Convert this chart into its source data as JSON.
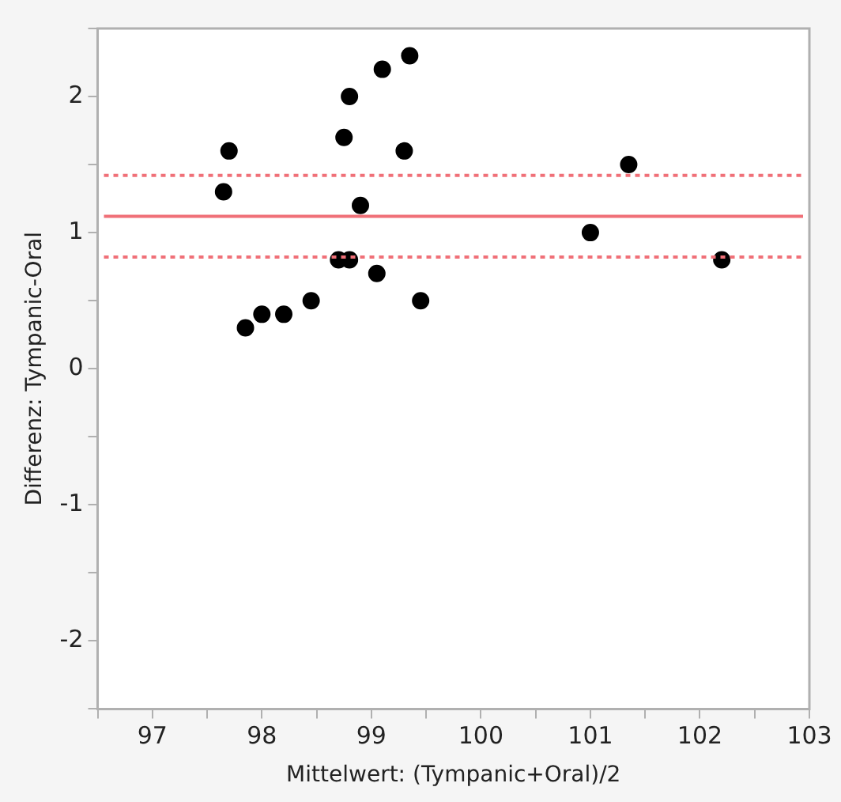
{
  "chart_data": {
    "type": "scatter",
    "xlabel": "Mittelwert: (Tympanic+Oral)/2",
    "ylabel": "Differenz: Tympanic-Oral",
    "x": [
      97.65,
      97.7,
      97.85,
      98.0,
      98.2,
      98.45,
      98.7,
      98.8,
      98.75,
      98.8,
      98.9,
      99.05,
      99.1,
      99.3,
      99.35,
      99.45,
      101.0,
      101.35,
      102.2
    ],
    "series": [
      {
        "color": "#000000",
        "values": [
          1.3,
          1.6,
          0.3,
          0.4,
          0.4,
          0.5,
          0.8,
          0.8,
          1.7,
          2.0,
          1.2,
          0.7,
          2.2,
          1.6,
          2.3,
          0.5,
          1.0,
          1.5,
          0.8
        ]
      }
    ],
    "marker": "circle",
    "xlim": [
      96.5,
      103
    ],
    "ylim": [
      -2.5,
      2.5
    ],
    "xticks": [
      {
        "value": 96.5,
        "label": null
      },
      97,
      {
        "value": 97.5,
        "label": null
      },
      98,
      {
        "value": 98.5,
        "label": null
      },
      99,
      {
        "value": 99.5,
        "label": null
      },
      100,
      {
        "value": 100.5,
        "label": null
      },
      101,
      {
        "value": 101.5,
        "label": null
      },
      102,
      {
        "value": 102.5,
        "label": null
      },
      103
    ],
    "yticks": [
      {
        "value": -2.5,
        "label": null
      },
      -2,
      {
        "value": -1.5,
        "label": null
      },
      -1,
      {
        "value": -0.5,
        "label": null
      },
      0,
      {
        "value": 0.5,
        "label": null
      },
      1,
      {
        "value": 1.5,
        "label": null
      },
      2,
      {
        "value": 2.5,
        "label": null
      }
    ],
    "ref_lines": [
      {
        "axis": "y",
        "value": 1.12,
        "color": "#f07078",
        "line_style": "solid"
      },
      {
        "axis": "y",
        "value": 1.42,
        "color": "#f07078",
        "line_style": "dotted"
      },
      {
        "axis": "y",
        "value": 0.82,
        "color": "#f07078",
        "line_style": "dotted"
      }
    ],
    "grid": false,
    "legend": false
  }
}
